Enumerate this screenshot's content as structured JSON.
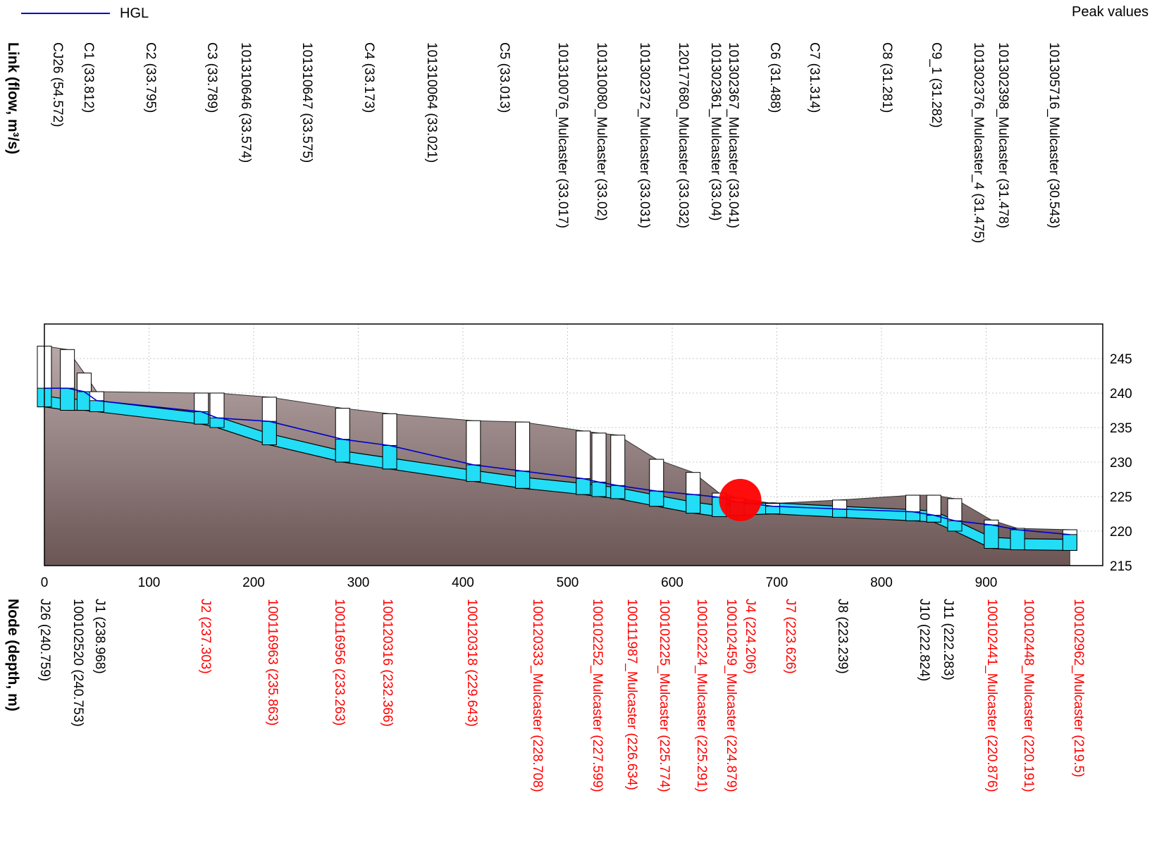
{
  "legend": {
    "hgl_label": "HGL",
    "hgl_color": "#0000cc",
    "mode_label": "Peak values"
  },
  "chart_data": {
    "type": "line",
    "title": "",
    "xlabel": "",
    "ylabel": "",
    "xlim": [
      0,
      1000
    ],
    "ylim": [
      215,
      250
    ],
    "x_ticks": [
      0,
      100,
      200,
      300,
      400,
      500,
      600,
      700,
      800,
      900
    ],
    "y_ticks": [
      215,
      220,
      225,
      230,
      235,
      240,
      245
    ],
    "grid": true,
    "link_axis_title": "Link (flow, m³/s)",
    "node_axis_title": "Node (depth, m)",
    "colors": {
      "water": "#22ddf5",
      "hgl": "#0000cc",
      "ground_top": "#b8a8a8",
      "ground_bottom": "#6b5555",
      "alert_node_label": "#ff0000",
      "normal_node_label": "#000000",
      "surcharge_marker": "#ff0000"
    },
    "link_labels": [
      "CJ26 (54.572)",
      "C1 (33.812)",
      "C2 (33.795)",
      "C3 (33.789)",
      "101310646 (33.574)",
      "101310647 (33.575)",
      "C4 (33.173)",
      "101310064 (33.021)",
      "C5 (33.013)",
      "101310076_Mulcaster (33.017)",
      "101310080_Mulcaster (33.02)",
      "101302372_Mulcaster (33.031)",
      "120177680_Mulcaster (33.032)",
      "101302361_Mulcaster (33.04)",
      "101302367_Mulcaster (33.041)",
      "C6 (31.488)",
      "C7 (31.314)",
      "C8 (31.281)",
      "C9_1 (31.282)",
      "101302376_Mulcaster_4 (31.475)",
      "101302398_Mulcaster (31.478)",
      "101305716_Mulcaster (30.543)"
    ],
    "node_labels": [
      {
        "text": "J26 (240.759)",
        "alert": false
      },
      {
        "text": "J1 (238.968)",
        "alert": false
      },
      {
        "text": "100102520 (240.753)",
        "alert": false
      },
      {
        "text": "J2 (237.303)",
        "alert": true
      },
      {
        "text": "100116963 (235.863)",
        "alert": true
      },
      {
        "text": "100116956 (233.263)",
        "alert": true
      },
      {
        "text": "100120316 (232.366)",
        "alert": true
      },
      {
        "text": "100120318 (229.643)",
        "alert": true
      },
      {
        "text": "100120333_Mulcaster (228.708)",
        "alert": true
      },
      {
        "text": "100102252_Mulcaster (227.599)",
        "alert": true
      },
      {
        "text": "100111987_Mulcaster (226.634)",
        "alert": true
      },
      {
        "text": "100102225_Mulcaster (225.774)",
        "alert": true
      },
      {
        "text": "100102224_Mulcaster (225.291)",
        "alert": true
      },
      {
        "text": "100102459_Mulcaster (224.879)",
        "alert": true
      },
      {
        "text": "J4 (224.206)",
        "alert": true
      },
      {
        "text": "J7 (223.626)",
        "alert": true
      },
      {
        "text": "J8 (223.239)",
        "alert": false
      },
      {
        "text": "J10 (222.824)",
        "alert": false
      },
      {
        "text": "J11 (222.283)",
        "alert": false
      },
      {
        "text": "100102441_Mulcaster (220.876)",
        "alert": true
      },
      {
        "text": "100102448_Mulcaster (220.191)",
        "alert": true
      },
      {
        "text": "100102962_Mulcaster (219.5)",
        "alert": true
      }
    ],
    "nodes": [
      {
        "x": 0,
        "invert": 238.0,
        "rim": 246.8,
        "hgl": 240.7
      },
      {
        "x": 22,
        "invert": 237.5,
        "rim": 246.3,
        "hgl": 240.7
      },
      {
        "x": 38,
        "invert": 237.5,
        "rim": 242.9,
        "hgl": 240.2
      },
      {
        "x": 50,
        "invert": 237.3,
        "rim": 240.2,
        "hgl": 238.9
      },
      {
        "x": 150,
        "invert": 235.5,
        "rim": 240.0,
        "hgl": 237.3
      },
      {
        "x": 165,
        "invert": 235.0,
        "rim": 240.0,
        "hgl": 236.4
      },
      {
        "x": 215,
        "invert": 232.5,
        "rim": 239.4,
        "hgl": 235.9
      },
      {
        "x": 285,
        "invert": 230.0,
        "rim": 237.8,
        "hgl": 233.3
      },
      {
        "x": 330,
        "invert": 229.0,
        "rim": 237.0,
        "hgl": 232.4
      },
      {
        "x": 410,
        "invert": 227.2,
        "rim": 236.0,
        "hgl": 229.6
      },
      {
        "x": 457,
        "invert": 226.2,
        "rim": 235.8,
        "hgl": 228.7
      },
      {
        "x": 515,
        "invert": 225.3,
        "rim": 234.5,
        "hgl": 227.6
      },
      {
        "x": 530,
        "invert": 225.0,
        "rim": 234.2,
        "hgl": 227.1
      },
      {
        "x": 548,
        "invert": 224.7,
        "rim": 233.9,
        "hgl": 226.6
      },
      {
        "x": 585,
        "invert": 223.6,
        "rim": 230.4,
        "hgl": 225.8
      },
      {
        "x": 620,
        "invert": 222.6,
        "rim": 228.5,
        "hgl": 225.3
      },
      {
        "x": 645,
        "invert": 222.1,
        "rim": 225.5,
        "hgl": 224.9
      },
      {
        "x": 662,
        "invert": 222.3,
        "rim": 224.8,
        "hgl": 224.2
      },
      {
        "x": 696,
        "invert": 222.5,
        "rim": 224.0,
        "hgl": 223.6
      },
      {
        "x": 760,
        "invert": 222.0,
        "rim": 224.5,
        "hgl": 223.2
      },
      {
        "x": 830,
        "invert": 221.5,
        "rim": 225.2,
        "hgl": 222.8
      },
      {
        "x": 850,
        "invert": 221.3,
        "rim": 225.2,
        "hgl": 222.3
      },
      {
        "x": 870,
        "invert": 220.0,
        "rim": 224.7,
        "hgl": 221.5
      },
      {
        "x": 905,
        "invert": 217.5,
        "rim": 221.6,
        "hgl": 220.9
      },
      {
        "x": 930,
        "invert": 217.3,
        "rim": 220.4,
        "hgl": 220.2
      },
      {
        "x": 980,
        "invert": 217.2,
        "rim": 220.2,
        "hgl": 219.5
      }
    ],
    "surcharge_marker": {
      "x": 665,
      "y": 224.5
    }
  }
}
